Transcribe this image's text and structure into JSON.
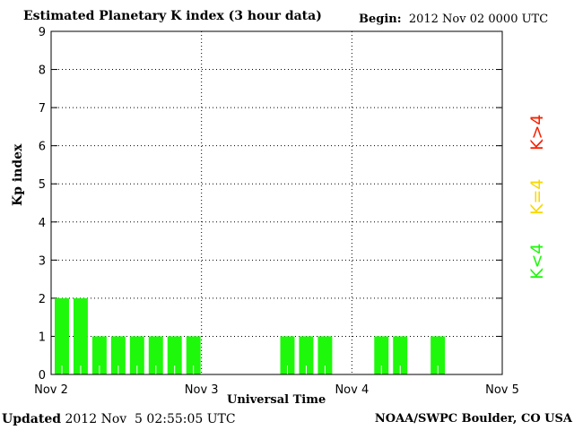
{
  "chart_data": {
    "type": "bar",
    "title": "Estimated Planetary K index (3 hour data)",
    "begin_label": "Begin:",
    "begin_value": "2012 Nov 02 0000 UTC",
    "xlabel": "Universal Time",
    "ylabel": "Kp index",
    "ylim": [
      0,
      9
    ],
    "yticks": [
      "0",
      "1",
      "2",
      "3",
      "4",
      "5",
      "6",
      "7",
      "8",
      "9"
    ],
    "xticks": [
      "Nov 2",
      "Nov 3",
      "Nov 4",
      "Nov 5"
    ],
    "grid": true,
    "interval_hours": 3,
    "values": [
      2,
      2,
      1,
      1,
      1,
      1,
      1,
      1,
      null,
      null,
      null,
      null,
      1,
      1,
      1,
      null,
      null,
      1,
      1,
      null,
      1,
      null,
      null,
      null
    ],
    "bar_color": "#1ef80a",
    "legend": [
      {
        "label": "K<4",
        "color": "#1ef80a"
      },
      {
        "label": "K=4",
        "color": "#f8d800"
      },
      {
        "label": "K>4",
        "color": "#f82000"
      }
    ]
  },
  "footer": {
    "updated_label": "Updated",
    "updated_value": "2012 Nov  5 02:55:05 UTC",
    "credit": "NOAA/SWPC Boulder, CO USA"
  }
}
